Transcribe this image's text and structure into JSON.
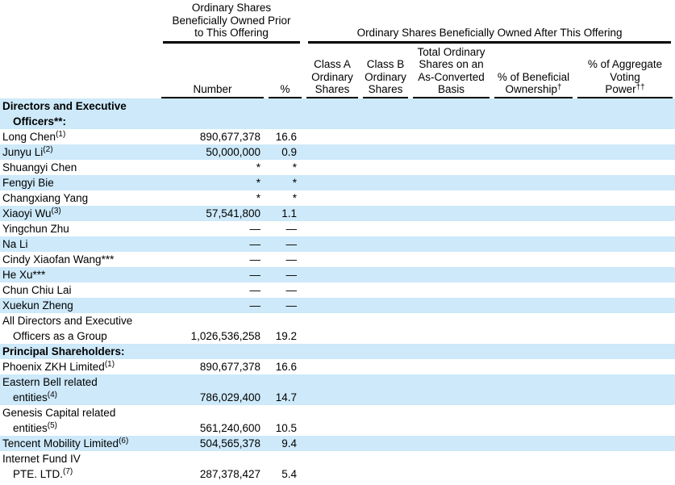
{
  "colors": {
    "row_stripe": "#CDE9FA",
    "text": "#000000",
    "rule": "#000000",
    "background": "#FFFFFF"
  },
  "table": {
    "group_headers": {
      "prior": {
        "lines": [
          [
            "Ordinary Shares"
          ],
          [
            "Beneficially Owned Prior"
          ],
          [
            "to This Offering"
          ]
        ]
      },
      "after": {
        "lines": [
          [
            "Ordinary Shares Beneficially Owned After This Offering"
          ]
        ]
      }
    },
    "columns": [
      {
        "id": "name",
        "label_lines": []
      },
      {
        "id": "number",
        "label_lines": [
          [
            "Number"
          ]
        ]
      },
      {
        "id": "percent",
        "label_lines": [
          [
            "%"
          ]
        ]
      },
      {
        "id": "class-a",
        "label_lines": [
          [
            "Class A"
          ],
          [
            "Ordinary"
          ],
          [
            "Shares"
          ]
        ]
      },
      {
        "id": "class-b",
        "label_lines": [
          [
            "Class B"
          ],
          [
            "Ordinary"
          ],
          [
            "Shares"
          ]
        ]
      },
      {
        "id": "total",
        "label_lines": [
          [
            "Total Ordinary"
          ],
          [
            "Shares on an"
          ],
          [
            "As-Converted"
          ],
          [
            "Basis"
          ]
        ]
      },
      {
        "id": "beneficial",
        "label_lines": [
          [
            "% of Beneficial"
          ],
          [
            "Ownership",
            {
              "sup": "†"
            }
          ]
        ]
      },
      {
        "id": "voting",
        "label_lines": [
          [
            "% of Aggregate"
          ],
          [
            "Voting"
          ],
          [
            "Power",
            {
              "sup": "††"
            }
          ]
        ]
      }
    ],
    "rows": [
      {
        "bold": true,
        "shaded": true,
        "lines": [
          [
            "Directors and Executive"
          ],
          [
            "Officers**:"
          ]
        ],
        "number": "",
        "pct": ""
      },
      {
        "bold": false,
        "shaded": false,
        "lines": [
          [
            "Long Chen",
            {
              "sup": "(1)"
            }
          ]
        ],
        "number": "890,677,378",
        "pct": "16.6"
      },
      {
        "bold": false,
        "shaded": true,
        "lines": [
          [
            "Junyu Li",
            {
              "sup": "(2)"
            }
          ]
        ],
        "number": "50,000,000",
        "pct": "0.9"
      },
      {
        "bold": false,
        "shaded": false,
        "lines": [
          [
            "Shuangyi Chen"
          ]
        ],
        "number": "*",
        "pct": "*"
      },
      {
        "bold": false,
        "shaded": true,
        "lines": [
          [
            "Fengyi Bie"
          ]
        ],
        "number": "*",
        "pct": "*"
      },
      {
        "bold": false,
        "shaded": false,
        "lines": [
          [
            "Changxiang Yang"
          ]
        ],
        "number": "*",
        "pct": "*"
      },
      {
        "bold": false,
        "shaded": true,
        "lines": [
          [
            "Xiaoyi Wu",
            {
              "sup": "(3)"
            }
          ]
        ],
        "number": "57,541,800",
        "pct": "1.1"
      },
      {
        "bold": false,
        "shaded": false,
        "lines": [
          [
            "Yingchun Zhu"
          ]
        ],
        "number": "—",
        "pct": "—"
      },
      {
        "bold": false,
        "shaded": true,
        "lines": [
          [
            "Na Li"
          ]
        ],
        "number": "—",
        "pct": "—"
      },
      {
        "bold": false,
        "shaded": false,
        "lines": [
          [
            "Cindy Xiaofan Wang***"
          ]
        ],
        "number": "—",
        "pct": "—"
      },
      {
        "bold": false,
        "shaded": true,
        "lines": [
          [
            "He Xu***"
          ]
        ],
        "number": "—",
        "pct": "—"
      },
      {
        "bold": false,
        "shaded": false,
        "lines": [
          [
            "Chun Chiu Lai"
          ]
        ],
        "number": "—",
        "pct": "—"
      },
      {
        "bold": false,
        "shaded": true,
        "lines": [
          [
            "Xuekun Zheng"
          ]
        ],
        "number": "—",
        "pct": "—"
      },
      {
        "bold": false,
        "shaded": false,
        "lines": [
          [
            "All Directors and Executive"
          ],
          [
            "Officers as a Group"
          ]
        ],
        "number": "1,026,536,258",
        "pct": "19.2"
      },
      {
        "bold": true,
        "shaded": true,
        "lines": [
          [
            "Principal Shareholders:"
          ]
        ],
        "number": "",
        "pct": ""
      },
      {
        "bold": false,
        "shaded": false,
        "lines": [
          [
            "Phoenix ZKH Limited",
            {
              "sup": "(1)"
            }
          ]
        ],
        "number": "890,677,378",
        "pct": "16.6"
      },
      {
        "bold": false,
        "shaded": true,
        "lines": [
          [
            "Eastern Bell related"
          ],
          [
            "entities",
            {
              "sup": "(4)"
            }
          ]
        ],
        "number": "786,029,400",
        "pct": "14.7"
      },
      {
        "bold": false,
        "shaded": false,
        "lines": [
          [
            "Genesis Capital related"
          ],
          [
            "entities",
            {
              "sup": "(5)"
            }
          ]
        ],
        "number": "561,240,600",
        "pct": "10.5"
      },
      {
        "bold": false,
        "shaded": true,
        "lines": [
          [
            "Tencent Mobility Limited",
            {
              "sup": "(6)"
            }
          ]
        ],
        "number": "504,565,378",
        "pct": "9.4"
      },
      {
        "bold": false,
        "shaded": false,
        "lines": [
          [
            "Internet Fund IV"
          ],
          [
            "PTE. LTD.",
            {
              "sup": "(7)"
            }
          ]
        ],
        "number": "287,378,427",
        "pct": "5.4"
      }
    ]
  }
}
